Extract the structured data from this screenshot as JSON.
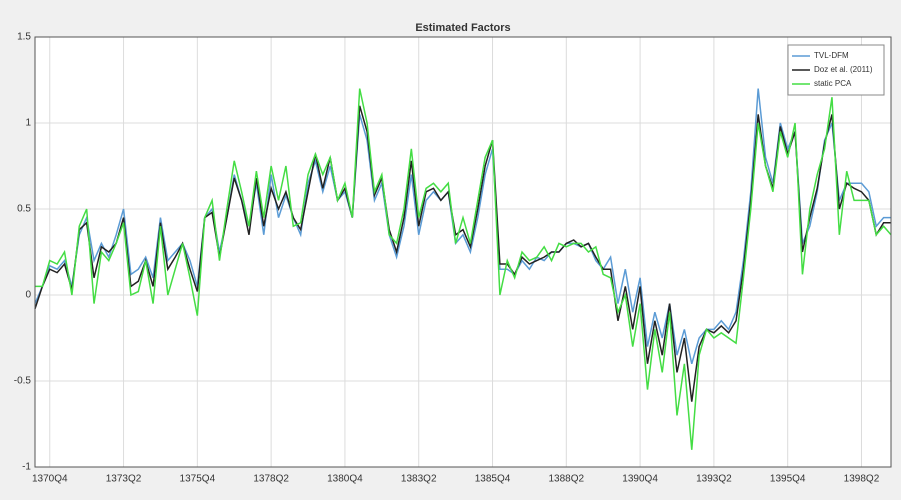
{
  "chart_data": {
    "type": "line",
    "title": "Estimated Factors",
    "categories": [
      null,
      null,
      "1370Q4",
      null,
      null,
      null,
      null,
      null,
      null,
      null,
      null,
      null,
      "1373Q2",
      null,
      null,
      null,
      null,
      null,
      null,
      null,
      null,
      null,
      "1375Q4",
      null,
      null,
      null,
      null,
      null,
      null,
      null,
      null,
      null,
      "1378Q2",
      null,
      null,
      null,
      null,
      null,
      null,
      null,
      null,
      null,
      "1380Q4",
      null,
      null,
      null,
      null,
      null,
      null,
      null,
      null,
      null,
      "1383Q2",
      null,
      null,
      null,
      null,
      null,
      null,
      null,
      null,
      null,
      "1385Q4",
      null,
      null,
      null,
      null,
      null,
      null,
      null,
      null,
      null,
      "1388Q2",
      null,
      null,
      null,
      null,
      null,
      null,
      null,
      null,
      null,
      "1390Q4",
      null,
      null,
      null,
      null,
      null,
      null,
      null,
      null,
      null,
      "1393Q2",
      null,
      null,
      null,
      null,
      null,
      null,
      null,
      null,
      null,
      "1395Q4",
      null,
      null,
      null,
      null,
      null,
      null,
      null,
      null,
      null,
      "1398Q2",
      null,
      null,
      null,
      null
    ],
    "series": [
      {
        "name": "TVL-DFM",
        "color": "#5b9bd5",
        "values": [
          -0.05,
          0.05,
          0.17,
          0.15,
          0.2,
          0.05,
          0.35,
          0.45,
          0.2,
          0.3,
          0.22,
          0.35,
          0.5,
          0.12,
          0.15,
          0.22,
          0.1,
          0.45,
          0.2,
          0.25,
          0.3,
          0.2,
          0.05,
          0.45,
          0.5,
          0.25,
          0.45,
          0.7,
          0.55,
          0.4,
          0.65,
          0.35,
          0.7,
          0.45,
          0.58,
          0.45,
          0.35,
          0.65,
          0.78,
          0.6,
          0.75,
          0.55,
          0.6,
          0.45,
          1.05,
          0.9,
          0.55,
          0.65,
          0.35,
          0.22,
          0.4,
          0.7,
          0.35,
          0.55,
          0.6,
          0.55,
          0.6,
          0.3,
          0.35,
          0.25,
          0.45,
          0.7,
          0.85,
          0.15,
          0.15,
          0.12,
          0.2,
          0.15,
          0.22,
          0.2,
          0.25,
          0.25,
          0.3,
          0.3,
          0.28,
          0.3,
          0.2,
          0.15,
          0.22,
          -0.05,
          0.15,
          -0.1,
          0.1,
          -0.3,
          -0.1,
          -0.25,
          -0.05,
          -0.35,
          -0.2,
          -0.4,
          -0.25,
          -0.2,
          -0.2,
          -0.15,
          -0.2,
          -0.1,
          0.2,
          0.6,
          1.2,
          0.8,
          0.65,
          1.0,
          0.85,
          0.95,
          0.3,
          0.4,
          0.6,
          0.9,
          1.0,
          0.55,
          0.65,
          0.65,
          0.65,
          0.6,
          0.4,
          0.45,
          0.45
        ]
      },
      {
        "name": "Doz et al. (2011)",
        "color": "#222222",
        "values": [
          -0.08,
          0.05,
          0.15,
          0.13,
          0.18,
          0.03,
          0.38,
          0.42,
          0.1,
          0.28,
          0.25,
          0.3,
          0.45,
          0.05,
          0.08,
          0.2,
          0.05,
          0.42,
          0.15,
          0.22,
          0.3,
          0.15,
          0.02,
          0.45,
          0.48,
          0.22,
          0.45,
          0.68,
          0.55,
          0.35,
          0.68,
          0.4,
          0.62,
          0.5,
          0.6,
          0.45,
          0.38,
          0.6,
          0.82,
          0.62,
          0.8,
          0.55,
          0.62,
          0.45,
          1.1,
          0.95,
          0.58,
          0.68,
          0.38,
          0.25,
          0.45,
          0.78,
          0.4,
          0.6,
          0.62,
          0.55,
          0.6,
          0.35,
          0.38,
          0.28,
          0.5,
          0.75,
          0.9,
          0.18,
          0.18,
          0.12,
          0.22,
          0.18,
          0.2,
          0.22,
          0.25,
          0.25,
          0.3,
          0.32,
          0.28,
          0.3,
          0.22,
          0.15,
          0.15,
          -0.15,
          0.05,
          -0.2,
          0.05,
          -0.4,
          -0.15,
          -0.35,
          -0.05,
          -0.45,
          -0.25,
          -0.62,
          -0.3,
          -0.2,
          -0.22,
          -0.18,
          -0.22,
          -0.15,
          0.15,
          0.55,
          1.05,
          0.75,
          0.62,
          0.98,
          0.82,
          0.95,
          0.25,
          0.45,
          0.62,
          0.88,
          1.05,
          0.5,
          0.65,
          0.62,
          0.6,
          0.55,
          0.35,
          0.42,
          0.42
        ]
      },
      {
        "name": "static PCA",
        "color": "#44dd44",
        "values": [
          0.05,
          0.05,
          0.2,
          0.18,
          0.25,
          0.0,
          0.4,
          0.5,
          -0.05,
          0.25,
          0.2,
          0.3,
          0.42,
          0.0,
          0.02,
          0.2,
          -0.05,
          0.4,
          0.0,
          0.15,
          0.3,
          0.1,
          -0.12,
          0.45,
          0.55,
          0.2,
          0.5,
          0.78,
          0.6,
          0.4,
          0.72,
          0.45,
          0.75,
          0.55,
          0.75,
          0.4,
          0.42,
          0.7,
          0.82,
          0.7,
          0.8,
          0.55,
          0.65,
          0.45,
          1.2,
          1.0,
          0.6,
          0.7,
          0.35,
          0.3,
          0.5,
          0.85,
          0.45,
          0.62,
          0.65,
          0.6,
          0.65,
          0.3,
          0.45,
          0.3,
          0.55,
          0.8,
          0.9,
          0.0,
          0.2,
          0.1,
          0.25,
          0.2,
          0.22,
          0.28,
          0.2,
          0.3,
          0.28,
          0.3,
          0.3,
          0.25,
          0.28,
          0.12,
          0.1,
          -0.1,
          0.0,
          -0.3,
          -0.05,
          -0.55,
          -0.2,
          -0.45,
          -0.1,
          -0.7,
          -0.4,
          -0.9,
          -0.35,
          -0.2,
          -0.25,
          -0.22,
          -0.25,
          -0.28,
          0.1,
          0.5,
          1.0,
          0.75,
          0.6,
          0.95,
          0.8,
          1.0,
          0.12,
          0.5,
          0.7,
          0.85,
          1.15,
          0.35,
          0.72,
          0.55,
          0.55,
          0.55,
          0.35,
          0.4,
          0.35
        ]
      }
    ],
    "ylim": [
      -1,
      1.5
    ],
    "yticks": [
      -1,
      -0.5,
      0,
      0.5,
      1,
      1.5
    ],
    "grid": true,
    "legend": "upper right"
  }
}
